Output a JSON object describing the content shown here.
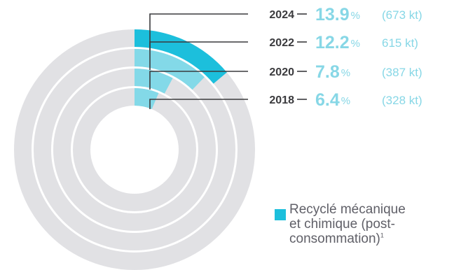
{
  "chart_data": {
    "type": "radial-bar",
    "unit_symbol": "%",
    "series": [
      {
        "name": "2024",
        "value": 13.9,
        "amount": "(673 kt)"
      },
      {
        "name": "2022",
        "value": 12.2,
        "amount": "615 kt)"
      },
      {
        "name": "2020",
        "value": 7.8,
        "amount": "(387 kt)"
      },
      {
        "name": "2018",
        "value": 6.4,
        "amount": "(328 kt)"
      }
    ],
    "legend": {
      "label": "Recyclé mécanique\net chimique (post-\nconsommation)",
      "footnote": "1",
      "placement": "bottom-right"
    }
  },
  "colors": {
    "track": "#e1e1e4",
    "highlight": "#1cbfdc",
    "fill": "#83d9e8",
    "value_text": "#87d7e6",
    "year_text": "#3a3a3d",
    "leader": "#3a3a3d"
  }
}
